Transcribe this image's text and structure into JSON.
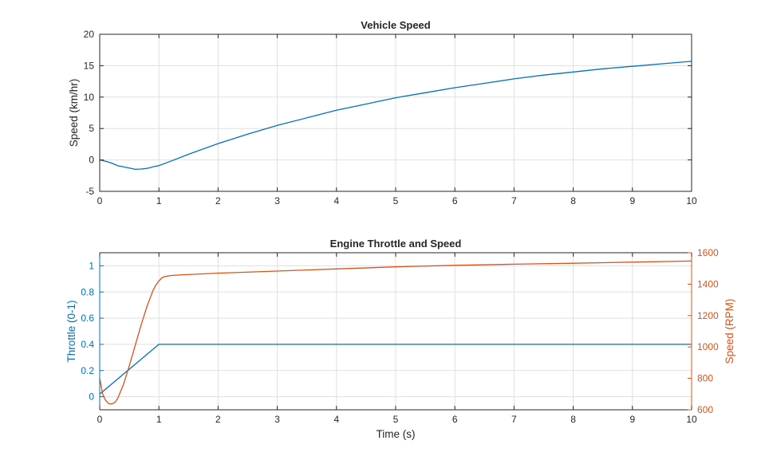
{
  "chart_data": [
    {
      "type": "line",
      "title": "Vehicle Speed",
      "xlabel": "",
      "ylabel": "Speed (km/hr)",
      "xlim": [
        0,
        10
      ],
      "ylim": [
        -5,
        20
      ],
      "xticks": [
        0,
        1,
        2,
        3,
        4,
        5,
        6,
        7,
        8,
        9,
        10
      ],
      "yticks": [
        -5,
        0,
        5,
        10,
        15,
        20
      ],
      "grid": true,
      "colors": {
        "line": "#0072BD",
        "axis": "#262626"
      },
      "series": [
        {
          "x": [
            0,
            0.1,
            0.2,
            0.3,
            0.4,
            0.5,
            0.6,
            0.7,
            0.8,
            0.9,
            1.0,
            1.2,
            1.5,
            2,
            2.5,
            3,
            3.5,
            4,
            4.5,
            5,
            5.5,
            6,
            6.5,
            7,
            7.5,
            8,
            8.5,
            9,
            9.5,
            10
          ],
          "y": [
            0,
            -0.2,
            -0.5,
            -0.9,
            -1.1,
            -1.3,
            -1.5,
            -1.45,
            -1.35,
            -1.1,
            -0.9,
            -0.2,
            0.9,
            2.6,
            4.1,
            5.5,
            6.7,
            7.9,
            8.9,
            9.9,
            10.7,
            11.5,
            12.2,
            12.9,
            13.5,
            14.0,
            14.5,
            14.9,
            15.3,
            15.7
          ]
        }
      ]
    },
    {
      "type": "line",
      "title": "Engine Throttle and Speed",
      "xlabel": "Time (s)",
      "ylabel": "Throttle (0-1)",
      "ylabel_right": "Speed (RPM)",
      "xlim": [
        0,
        10
      ],
      "ylim": [
        -0.1,
        1.1
      ],
      "ylim_right": [
        600,
        1600
      ],
      "xticks": [
        0,
        1,
        2,
        3,
        4,
        5,
        6,
        7,
        8,
        9,
        10
      ],
      "yticks": [
        0,
        0.2,
        0.4,
        0.6,
        0.8,
        1
      ],
      "yticks_right": [
        600,
        800,
        1000,
        1200,
        1400,
        1600
      ],
      "grid": true,
      "colors": {
        "left": "#0072BD",
        "right": "#D95319",
        "axis": "#262626"
      },
      "series": [
        {
          "axis": "left",
          "x": [
            0,
            1,
            10
          ],
          "y": [
            0.02,
            0.4,
            0.4
          ]
        },
        {
          "axis": "right",
          "x": [
            0,
            0.05,
            0.1,
            0.15,
            0.2,
            0.25,
            0.3,
            0.4,
            0.5,
            0.6,
            0.7,
            0.8,
            0.9,
            0.95,
            1.0,
            1.05,
            1.1,
            1.2,
            1.4,
            1.6,
            2,
            3,
            4,
            5,
            6,
            7,
            8,
            9,
            10
          ],
          "y": [
            800,
            700,
            660,
            640,
            637,
            645,
            670,
            760,
            880,
            1010,
            1140,
            1260,
            1360,
            1395,
            1420,
            1440,
            1448,
            1455,
            1460,
            1463,
            1470,
            1483,
            1497,
            1510,
            1520,
            1527,
            1533,
            1540,
            1547
          ]
        }
      ]
    }
  ]
}
